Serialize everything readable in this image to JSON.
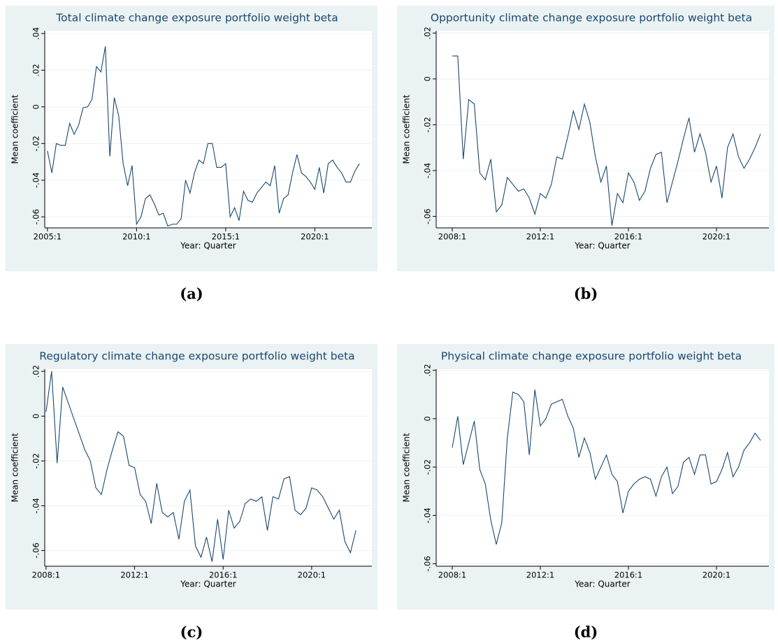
{
  "chart_data": [
    {
      "type": "line",
      "title": "Total climate change exposure portfolio weight beta",
      "caption": "(a)",
      "x_label": "Year: Quarter",
      "y_label": "Mean coefficient",
      "color": "#1a476f",
      "grid": true,
      "xlim": [
        2004.85,
        2023.2
      ],
      "ylim": [
        -0.066,
        0.0415
      ],
      "xticks": [
        {
          "value": 2005,
          "label": "2005:1"
        },
        {
          "value": 2010,
          "label": "2010:1"
        },
        {
          "value": 2015,
          "label": "2015:1"
        },
        {
          "value": 2020,
          "label": "2020:1"
        }
      ],
      "yticks": [
        {
          "value": -0.06,
          "label": "-.06"
        },
        {
          "value": -0.04,
          "label": "-.04"
        },
        {
          "value": -0.02,
          "label": "-.02"
        },
        0,
        {
          "value": 0.02,
          "label": ".02"
        },
        {
          "value": 0.04,
          "label": ".04"
        }
      ],
      "x": [
        2005,
        2005.25,
        2005.5,
        2005.75,
        2006,
        2006.25,
        2006.5,
        2006.75,
        2007,
        2007.25,
        2007.5,
        2007.75,
        2008,
        2008.25,
        2008.5,
        2008.75,
        2009,
        2009.25,
        2009.5,
        2009.75,
        2010,
        2010.25,
        2010.5,
        2010.75,
        2011,
        2011.25,
        2011.5,
        2011.75,
        2012,
        2012.25,
        2012.5,
        2012.75,
        2013,
        2013.25,
        2013.5,
        2013.75,
        2014,
        2014.25,
        2014.5,
        2014.75,
        2015,
        2015.25,
        2015.5,
        2015.75,
        2016,
        2016.25,
        2016.5,
        2016.75,
        2017,
        2017.25,
        2017.5,
        2017.75,
        2018,
        2018.25,
        2018.5,
        2018.75,
        2019,
        2019.25,
        2019.5,
        2019.75,
        2020,
        2020.25,
        2020.5,
        2020.75,
        2021,
        2021.25,
        2021.5,
        2021.75,
        2022,
        2022.25,
        2022.5
      ],
      "values": [
        -0.024,
        -0.036,
        -0.02,
        -0.021,
        -0.021,
        -0.009,
        -0.015,
        -0.01,
        -0.0005,
        0,
        0.004,
        0.022,
        0.019,
        0.033,
        -0.027,
        0.005,
        -0.005,
        -0.031,
        -0.043,
        -0.032,
        -0.064,
        -0.06,
        -0.05,
        -0.048,
        -0.053,
        -0.059,
        -0.058,
        -0.065,
        -0.064,
        -0.064,
        -0.061,
        -0.04,
        -0.047,
        -0.036,
        -0.029,
        -0.031,
        -0.02,
        -0.02,
        -0.033,
        -0.033,
        -0.031,
        -0.06,
        -0.055,
        -0.062,
        -0.046,
        -0.051,
        -0.052,
        -0.047,
        -0.044,
        -0.041,
        -0.043,
        -0.032,
        -0.058,
        -0.05,
        -0.048,
        -0.036,
        -0.026,
        -0.036,
        -0.038,
        -0.041,
        -0.045,
        -0.033,
        -0.047,
        -0.031,
        -0.029,
        -0.033,
        -0.036,
        -0.041,
        -0.041,
        -0.035,
        -0.031
      ]
    },
    {
      "type": "line",
      "title": "Opportunity climate change exposure portfolio weight beta",
      "caption": "(b)",
      "x_label": "Year: Quarter",
      "y_label": "Mean coefficient",
      "color": "#1a476f",
      "grid": true,
      "xlim": [
        2007.27,
        2022.38
      ],
      "ylim": [
        -0.065,
        0.021
      ],
      "xticks": [
        {
          "value": 2008,
          "label": "2008:1"
        },
        {
          "value": 2012,
          "label": "2012:1"
        },
        {
          "value": 2016,
          "label": "2016:1"
        },
        {
          "value": 2020,
          "label": "2020:1"
        }
      ],
      "yticks": [
        {
          "value": -0.06,
          "label": "-.06"
        },
        {
          "value": -0.04,
          "label": "-.04"
        },
        {
          "value": -0.02,
          "label": "-.02"
        },
        0,
        {
          "value": 0.02,
          "label": ".02"
        }
      ],
      "x": [
        2008,
        2008.25,
        2008.5,
        2008.75,
        2009,
        2009.25,
        2009.5,
        2009.75,
        2010,
        2010.25,
        2010.5,
        2010.75,
        2011,
        2011.25,
        2011.5,
        2011.75,
        2012,
        2012.25,
        2012.5,
        2012.75,
        2013,
        2013.25,
        2013.5,
        2013.75,
        2014,
        2014.25,
        2014.5,
        2014.75,
        2015,
        2015.25,
        2015.5,
        2015.75,
        2016,
        2016.25,
        2016.5,
        2016.75,
        2017,
        2017.25,
        2017.5,
        2017.75,
        2018,
        2018.25,
        2018.5,
        2018.75,
        2019,
        2019.25,
        2019.5,
        2019.75,
        2020,
        2020.25,
        2020.5,
        2020.75,
        2021,
        2021.25,
        2021.5,
        2021.75,
        2022
      ],
      "values": [
        0.01,
        0.01,
        -0.035,
        -0.009,
        -0.011,
        -0.041,
        -0.044,
        -0.035,
        -0.058,
        -0.055,
        -0.043,
        -0.046,
        -0.049,
        -0.048,
        -0.052,
        -0.059,
        -0.05,
        -0.052,
        -0.046,
        -0.034,
        -0.035,
        -0.025,
        -0.014,
        -0.022,
        -0.011,
        -0.019,
        -0.034,
        -0.045,
        -0.038,
        -0.064,
        -0.05,
        -0.054,
        -0.041,
        -0.045,
        -0.053,
        -0.049,
        -0.039,
        -0.033,
        -0.032,
        -0.054,
        -0.045,
        -0.036,
        -0.026,
        -0.017,
        -0.032,
        -0.024,
        -0.032,
        -0.045,
        -0.038,
        -0.052,
        -0.03,
        -0.024,
        -0.034,
        -0.039,
        -0.035,
        -0.03,
        -0.024
      ]
    },
    {
      "type": "line",
      "title": "Regulatory climate change exposure portfolio weight beta",
      "caption": "(c)",
      "x_label": "Year: Quarter",
      "y_label": "Mean coefficient",
      "color": "#1a476f",
      "grid": true,
      "xlim": [
        2007.94,
        2022.72
      ],
      "ylim": [
        -0.067,
        0.021
      ],
      "xticks": [
        {
          "value": 2008,
          "label": "2008:1"
        },
        {
          "value": 2012,
          "label": "2012:1"
        },
        {
          "value": 2016,
          "label": "2016:1"
        },
        {
          "value": 2020,
          "label": "2020:1"
        }
      ],
      "yticks": [
        {
          "value": -0.06,
          "label": "-.06"
        },
        {
          "value": -0.04,
          "label": "-.04"
        },
        {
          "value": -0.02,
          "label": "-.02"
        },
        0,
        {
          "value": 0.02,
          "label": ".02"
        }
      ],
      "x": [
        2008,
        2008.25,
        2008.5,
        2008.75,
        2009,
        2009.25,
        2009.5,
        2009.75,
        2010,
        2010.25,
        2010.5,
        2010.75,
        2011,
        2011.25,
        2011.5,
        2011.75,
        2012,
        2012.25,
        2012.5,
        2012.75,
        2013,
        2013.25,
        2013.5,
        2013.75,
        2014,
        2014.25,
        2014.5,
        2014.75,
        2015,
        2015.25,
        2015.5,
        2015.75,
        2016,
        2016.25,
        2016.5,
        2016.75,
        2017,
        2017.25,
        2017.5,
        2017.75,
        2018,
        2018.25,
        2018.5,
        2018.75,
        2019,
        2019.25,
        2019.5,
        2019.75,
        2020,
        2020.25,
        2020.5,
        2020.75,
        2021,
        2021.25,
        2021.5,
        2021.75,
        2022
      ],
      "values": [
        0.002,
        0.02,
        -0.021,
        0.013,
        0.006,
        -0.001,
        -0.008,
        -0.015,
        -0.02,
        -0.032,
        -0.035,
        -0.024,
        -0.015,
        -0.007,
        -0.009,
        -0.022,
        -0.023,
        -0.035,
        -0.038,
        -0.048,
        -0.03,
        -0.043,
        -0.045,
        -0.043,
        -0.055,
        -0.038,
        -0.033,
        -0.058,
        -0.063,
        -0.054,
        -0.065,
        -0.046,
        -0.064,
        -0.042,
        -0.05,
        -0.047,
        -0.039,
        -0.037,
        -0.038,
        -0.036,
        -0.051,
        -0.036,
        -0.037,
        -0.028,
        -0.027,
        -0.042,
        -0.044,
        -0.041,
        -0.032,
        -0.033,
        -0.036,
        -0.041,
        -0.046,
        -0.042,
        -0.056,
        -0.061,
        -0.051
      ]
    },
    {
      "type": "line",
      "title": "Physical climate change exposure portfolio weight beta",
      "caption": "(d)",
      "x_label": "Year: Quarter",
      "y_label": "Mean coefficient",
      "color": "#1a476f",
      "grid": true,
      "xlim": [
        2007.27,
        2022.38
      ],
      "ylim": [
        -0.061,
        0.0205
      ],
      "xticks": [
        {
          "value": 2008,
          "label": "2008:1"
        },
        {
          "value": 2012,
          "label": "2012:1"
        },
        {
          "value": 2016,
          "label": "2016:1"
        },
        {
          "value": 2020,
          "label": "2020:1"
        }
      ],
      "yticks": [
        {
          "value": -0.06,
          "label": "-.06"
        },
        {
          "value": -0.04,
          "label": "-.04"
        },
        {
          "value": -0.02,
          "label": "-.02"
        },
        0,
        {
          "value": 0.02,
          "label": ".02"
        }
      ],
      "x": [
        2008,
        2008.25,
        2008.5,
        2008.75,
        2009,
        2009.25,
        2009.5,
        2009.75,
        2010,
        2010.25,
        2010.5,
        2010.75,
        2011,
        2011.25,
        2011.5,
        2011.75,
        2012,
        2012.25,
        2012.5,
        2012.75,
        2013,
        2013.25,
        2013.5,
        2013.75,
        2014,
        2014.25,
        2014.5,
        2014.75,
        2015,
        2015.25,
        2015.5,
        2015.75,
        2016,
        2016.25,
        2016.5,
        2016.75,
        2017,
        2017.25,
        2017.5,
        2017.75,
        2018,
        2018.25,
        2018.5,
        2018.75,
        2019,
        2019.25,
        2019.5,
        2019.75,
        2020,
        2020.25,
        2020.5,
        2020.75,
        2021,
        2021.25,
        2021.5,
        2021.75,
        2022
      ],
      "values": [
        -0.012,
        0.001,
        -0.019,
        -0.01,
        -0.001,
        -0.021,
        -0.027,
        -0.042,
        -0.052,
        -0.043,
        -0.008,
        0.011,
        0.01,
        0.007,
        -0.015,
        0.012,
        -0.003,
        0,
        0.006,
        0.007,
        0.008,
        0.001,
        -0.004,
        -0.016,
        -0.008,
        -0.014,
        -0.025,
        -0.02,
        -0.015,
        -0.023,
        -0.026,
        -0.039,
        -0.03,
        -0.027,
        -0.025,
        -0.024,
        -0.025,
        -0.032,
        -0.024,
        -0.02,
        -0.031,
        -0.028,
        -0.018,
        -0.016,
        -0.023,
        -0.015,
        -0.015,
        -0.027,
        -0.026,
        -0.021,
        -0.014,
        -0.024,
        -0.02,
        -0.013,
        -0.01,
        -0.006,
        -0.009
      ]
    }
  ]
}
